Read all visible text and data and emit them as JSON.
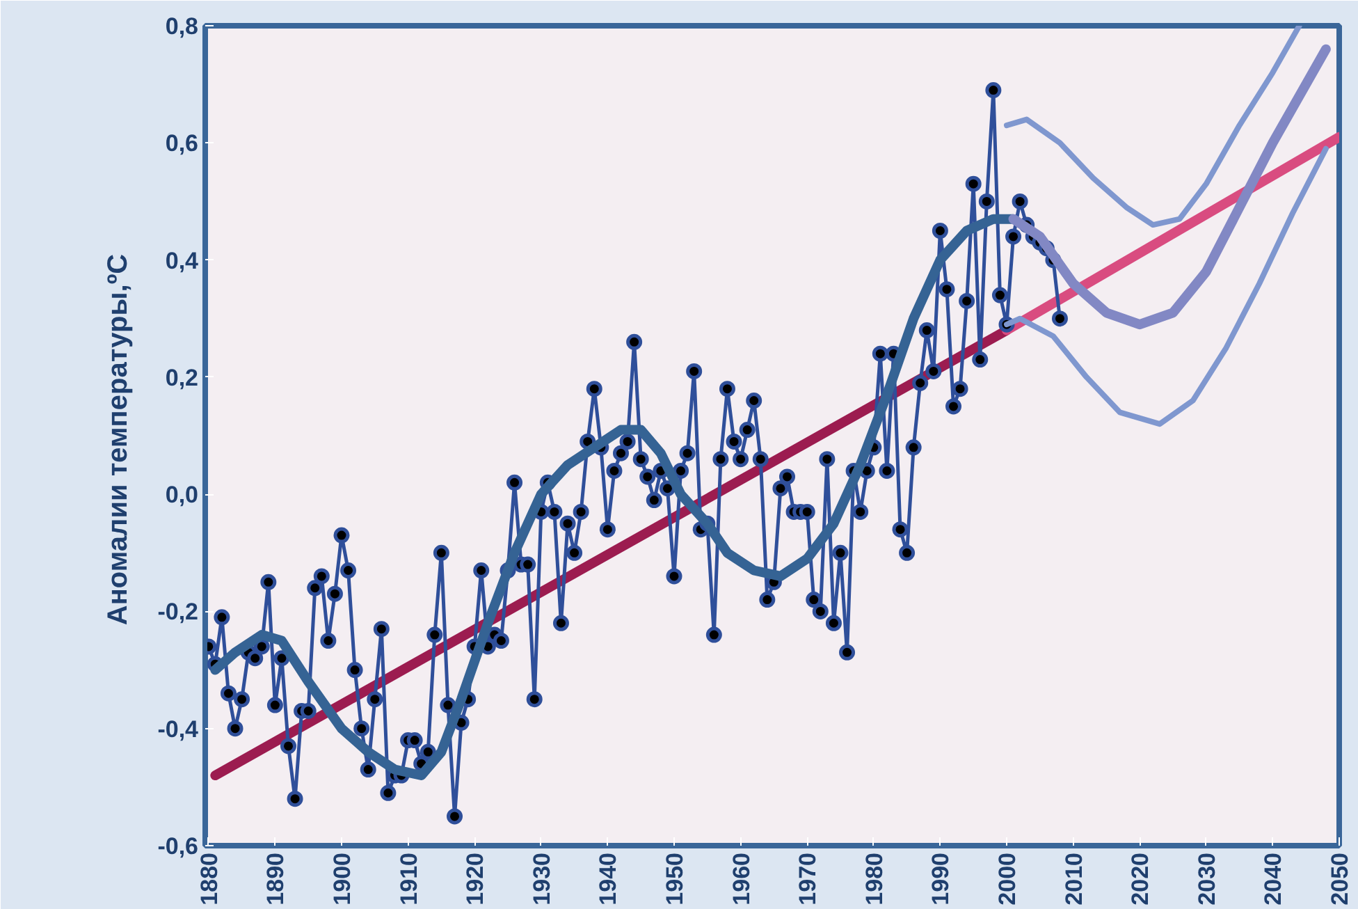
{
  "chart_data": {
    "type": "line",
    "ylabel": "Аномалии  температуры,ºC",
    "xlim": [
      1879.5,
      2050
    ],
    "ylim": [
      -0.6,
      0.8
    ],
    "xticks": [
      1880,
      1890,
      1900,
      1910,
      1920,
      1930,
      1940,
      1950,
      1960,
      1970,
      1980,
      1990,
      2000,
      2010,
      2020,
      2030,
      2040,
      2050
    ],
    "yticks": [
      {
        "value": -0.6,
        "label": "-0,6"
      },
      {
        "value": -0.4,
        "label": "-0,4"
      },
      {
        "value": -0.2,
        "label": "-0,2"
      },
      {
        "value": 0,
        "label": "0,0"
      },
      {
        "value": 0.2,
        "label": "0,2"
      },
      {
        "value": 0.4,
        "label": "0,4"
      },
      {
        "value": 0.6,
        "label": "0,6"
      },
      {
        "value": 0.8,
        "label": "0,8"
      }
    ],
    "grid": false,
    "series": [
      {
        "color": "#9c1c50",
        "marker": "none",
        "x": [
          1881,
          2000
        ],
        "values": [
          -0.48,
          0.28
        ]
      },
      {
        "color": "#d94c80",
        "marker": "none",
        "x": [
          2000,
          2050
        ],
        "values": [
          0.28,
          0.61
        ]
      },
      {
        "color": "#2f4f9a",
        "marker": "circle",
        "x": [
          1880,
          1881,
          1882,
          1883,
          1884,
          1885,
          1886,
          1887,
          1888,
          1889,
          1890,
          1891,
          1892,
          1893,
          1894,
          1895,
          1896,
          1897,
          1898,
          1899,
          1900,
          1901,
          1902,
          1903,
          1904,
          1905,
          1906,
          1907,
          1908,
          1909,
          1910,
          1911,
          1912,
          1913,
          1914,
          1915,
          1916,
          1917,
          1918,
          1919,
          1920,
          1921,
          1922,
          1923,
          1924,
          1925,
          1926,
          1927,
          1928,
          1929,
          1930,
          1931,
          1932,
          1933,
          1934,
          1935,
          1936,
          1937,
          1938,
          1939,
          1940,
          1941,
          1942,
          1943,
          1944,
          1945,
          1946,
          1947,
          1948,
          1949,
          1950,
          1951,
          1952,
          1953,
          1954,
          1955,
          1956,
          1957,
          1958,
          1959,
          1960,
          1961,
          1962,
          1963,
          1964,
          1965,
          1966,
          1967,
          1968,
          1969,
          1970,
          1971,
          1972,
          1973,
          1974,
          1975,
          1976,
          1977,
          1978,
          1979,
          1980,
          1981,
          1982,
          1983,
          1984,
          1985,
          1986,
          1987,
          1988,
          1989,
          1990,
          1991,
          1992,
          1993,
          1994,
          1995,
          1996,
          1997,
          1998,
          1999,
          2000,
          2001,
          2002,
          2003,
          2004,
          2005,
          2006,
          2007,
          2008
        ],
        "values": [
          -0.26,
          -0.29,
          -0.21,
          -0.34,
          -0.4,
          -0.35,
          -0.27,
          -0.28,
          -0.26,
          -0.15,
          -0.36,
          -0.28,
          -0.43,
          -0.52,
          -0.37,
          -0.37,
          -0.16,
          -0.14,
          -0.25,
          -0.17,
          -0.07,
          -0.13,
          -0.3,
          -0.4,
          -0.47,
          -0.35,
          -0.23,
          -0.51,
          -0.48,
          -0.48,
          -0.42,
          -0.42,
          -0.46,
          -0.44,
          -0.24,
          -0.1,
          -0.36,
          -0.55,
          -0.39,
          -0.35,
          -0.26,
          -0.13,
          -0.26,
          -0.24,
          -0.25,
          -0.13,
          0.02,
          -0.12,
          -0.12,
          -0.35,
          -0.03,
          0.02,
          -0.03,
          -0.22,
          -0.05,
          -0.1,
          -0.03,
          0.09,
          0.18,
          0.08,
          -0.06,
          0.04,
          0.07,
          0.09,
          0.26,
          0.06,
          0.03,
          -0.01,
          0.04,
          0.01,
          -0.14,
          0.04,
          0.07,
          0.21,
          -0.06,
          -0.05,
          -0.24,
          0.06,
          0.18,
          0.09,
          0.06,
          0.11,
          0.16,
          0.06,
          -0.18,
          -0.15,
          0.01,
          0.03,
          -0.03,
          -0.03,
          -0.03,
          -0.18,
          -0.2,
          0.06,
          -0.22,
          -0.1,
          -0.27,
          0.04,
          -0.03,
          0.04,
          0.08,
          0.24,
          0.04,
          0.24,
          -0.06,
          -0.1,
          0.08,
          0.19,
          0.28,
          0.21,
          0.45,
          0.35,
          0.15,
          0.18,
          0.33,
          0.53,
          0.23,
          0.5,
          0.69,
          0.34,
          0.29,
          0.44,
          0.5,
          0.46,
          0.44,
          0.43,
          0.42,
          0.4,
          0.3
        ]
      },
      {
        "color": "#356394",
        "marker": "none",
        "x": [
          1881,
          1884,
          1888,
          1891,
          1895,
          1900,
          1904,
          1908,
          1912,
          1915,
          1918,
          1922,
          1926,
          1930,
          1934,
          1938,
          1942,
          1945,
          1948,
          1951,
          1955,
          1958,
          1962,
          1966,
          1970,
          1974,
          1978,
          1982,
          1986,
          1990,
          1994,
          1998,
          2001
        ],
        "values": [
          -0.3,
          -0.27,
          -0.24,
          -0.25,
          -0.32,
          -0.4,
          -0.44,
          -0.47,
          -0.48,
          -0.44,
          -0.35,
          -0.22,
          -0.1,
          0.0,
          0.05,
          0.08,
          0.11,
          0.11,
          0.07,
          0.0,
          -0.05,
          -0.1,
          -0.13,
          -0.14,
          -0.11,
          -0.05,
          0.05,
          0.17,
          0.3,
          0.4,
          0.45,
          0.47,
          0.47
        ]
      },
      {
        "color": "#8288c4",
        "marker": "none",
        "x": [
          2001,
          2005,
          2010,
          2015,
          2020,
          2025,
          2030,
          2035,
          2040,
          2045,
          2048
        ],
        "values": [
          0.47,
          0.44,
          0.36,
          0.31,
          0.29,
          0.31,
          0.38,
          0.49,
          0.6,
          0.7,
          0.76
        ]
      },
      {
        "color": "#7f97cf",
        "marker": "none",
        "x": [
          2000,
          2003,
          2008,
          2013,
          2018,
          2022,
          2026,
          2030,
          2035,
          2040,
          2044
        ],
        "values": [
          0.63,
          0.64,
          0.6,
          0.54,
          0.49,
          0.46,
          0.47,
          0.53,
          0.63,
          0.72,
          0.8
        ]
      },
      {
        "color": "#7f97cf",
        "marker": "none",
        "x": [
          2000,
          2002,
          2007,
          2012,
          2017,
          2023,
          2028,
          2033,
          2038,
          2043,
          2048
        ],
        "values": [
          0.29,
          0.3,
          0.27,
          0.2,
          0.14,
          0.12,
          0.16,
          0.25,
          0.36,
          0.48,
          0.59
        ]
      }
    ]
  }
}
